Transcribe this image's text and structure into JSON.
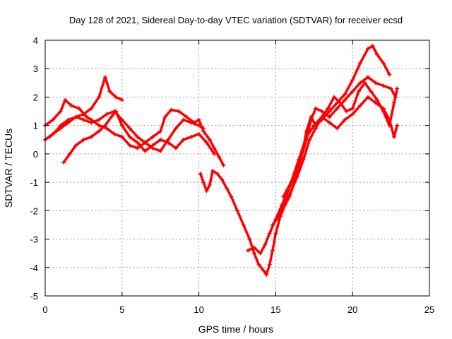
{
  "chart_data": {
    "type": "scatter",
    "title": "Day 128 of 2021, Sidereal Day-to-day VTEC variation (SDTVAR) for receiver ecsd",
    "xlabel": "GPS time / hours",
    "ylabel": "SDTVAR / TECUs",
    "xlim": [
      0,
      25
    ],
    "ylim": [
      -5,
      4
    ],
    "xticks": [
      "0",
      "5",
      "10",
      "15",
      "20",
      "25"
    ],
    "yticks": [
      "-5",
      "-4",
      "-3",
      "-2",
      "-1",
      "0",
      "1",
      "2",
      "3",
      "4"
    ],
    "grid": true,
    "marker": "+",
    "color": "#ff0000",
    "series": [
      {
        "x": [
          0.0,
          0.5,
          1.0,
          1.5,
          2.0,
          2.5,
          3.0,
          3.5,
          3.9,
          4.2,
          4.6,
          5.0
        ],
        "y": [
          0.5,
          0.7,
          0.9,
          1.1,
          1.3,
          1.4,
          1.6,
          2.0,
          2.7,
          2.2,
          2.0,
          1.9
        ]
      },
      {
        "x": [
          0.0,
          0.5,
          1.0,
          1.3,
          1.7,
          2.2,
          2.7,
          3.0,
          3.5,
          4.0,
          4.5,
          5.0,
          5.5,
          6.0,
          6.5,
          7.0,
          7.5,
          7.8,
          8.2,
          8.7,
          9.2,
          9.7,
          10.0,
          10.3,
          10.7,
          11.0,
          11.3,
          11.6
        ],
        "y": [
          1.0,
          1.2,
          1.5,
          1.9,
          1.7,
          1.6,
          1.3,
          1.2,
          1.0,
          0.9,
          0.7,
          0.6,
          0.3,
          0.2,
          0.4,
          0.6,
          0.8,
          1.3,
          1.55,
          1.5,
          1.3,
          1.1,
          1.2,
          0.8,
          0.5,
          0.2,
          -0.1,
          -0.4
        ]
      },
      {
        "x": [
          1.2,
          1.6,
          2.0,
          2.5,
          3.0,
          3.5,
          3.9,
          4.3,
          4.6,
          5.0,
          5.5,
          6.0,
          6.5,
          7.0,
          7.5,
          8.0,
          8.5,
          9.0,
          9.5,
          10.0,
          10.5,
          11.0
        ],
        "y": [
          -0.3,
          0.0,
          0.3,
          0.5,
          0.6,
          0.8,
          1.0,
          1.3,
          1.5,
          1.0,
          0.6,
          0.4,
          0.1,
          0.3,
          0.5,
          0.4,
          0.2,
          0.5,
          0.6,
          0.7,
          0.4,
          0.0
        ]
      },
      {
        "x": [
          0.3,
          0.7,
          1.0,
          1.5,
          2.0,
          2.5,
          3.0,
          3.5,
          4.0,
          4.5,
          5.0,
          5.5,
          6.0,
          6.5,
          7.0,
          7.5,
          8.0,
          8.5,
          9.0,
          9.5,
          10.0,
          10.3
        ],
        "y": [
          0.6,
          0.8,
          1.0,
          1.2,
          1.3,
          1.2,
          1.1,
          1.2,
          1.4,
          1.5,
          1.2,
          0.9,
          0.6,
          0.4,
          0.2,
          0.1,
          0.5,
          0.9,
          1.2,
          1.1,
          1.0,
          0.9
        ]
      },
      {
        "x": [
          10.1,
          10.3,
          10.5,
          10.7,
          10.9,
          11.2,
          11.5,
          11.8,
          12.1,
          12.5,
          12.9,
          13.3,
          13.6,
          13.9,
          14.2,
          14.4,
          14.6,
          14.8,
          15.0,
          15.3,
          15.6,
          15.9,
          16.2,
          16.5,
          16.8,
          17.0,
          17.3,
          17.6,
          18.0,
          18.5,
          19.0,
          19.5,
          20.0,
          20.5,
          21.0,
          21.3,
          21.6,
          22.0,
          22.4
        ],
        "y": [
          -0.7,
          -1.0,
          -1.3,
          -1.1,
          -0.6,
          -0.7,
          -0.9,
          -1.2,
          -1.5,
          -2.0,
          -2.5,
          -3.0,
          -3.5,
          -3.9,
          -4.1,
          -4.25,
          -3.9,
          -3.4,
          -2.8,
          -2.2,
          -1.8,
          -1.5,
          -1.0,
          -0.5,
          0.2,
          0.8,
          1.3,
          1.0,
          1.2,
          1.5,
          1.8,
          2.1,
          2.6,
          3.2,
          3.7,
          3.8,
          3.5,
          3.2,
          2.8
        ]
      },
      {
        "x": [
          13.2,
          13.6,
          14.0,
          14.3,
          14.6,
          15.0,
          15.4,
          15.8,
          16.2,
          16.6,
          17.0,
          17.3,
          17.6,
          18.0,
          18.5,
          19.0,
          19.5,
          20.0,
          20.5,
          21.0,
          21.5,
          22.0,
          22.5,
          22.8
        ],
        "y": [
          -3.4,
          -3.3,
          -3.5,
          -3.2,
          -2.8,
          -2.3,
          -1.8,
          -1.3,
          -0.8,
          -0.2,
          0.5,
          1.2,
          1.6,
          1.5,
          1.3,
          1.6,
          1.9,
          2.2,
          2.5,
          2.7,
          2.5,
          2.4,
          2.3,
          2.0
        ]
      },
      {
        "x": [
          14.8,
          15.2,
          15.6,
          16.0,
          16.4,
          16.8,
          17.2,
          17.6,
          18.0,
          18.4,
          18.8,
          19.2,
          19.6,
          20.0,
          20.4,
          20.8,
          21.2,
          21.6,
          22.0,
          22.4,
          22.7,
          22.9
        ],
        "y": [
          -2.5,
          -2.2,
          -1.7,
          -1.3,
          -0.8,
          -0.2,
          0.5,
          0.9,
          1.3,
          1.6,
          2.0,
          1.8,
          1.5,
          1.6,
          2.2,
          2.5,
          2.2,
          1.9,
          1.5,
          1.0,
          1.8,
          2.3
        ]
      },
      {
        "x": [
          15.5,
          16.0,
          16.5,
          17.0,
          17.5,
          18.0,
          18.5,
          19.0,
          19.5,
          20.0,
          20.5,
          21.0,
          21.5,
          22.0,
          22.4,
          22.7,
          22.9
        ],
        "y": [
          -1.5,
          -1.0,
          -0.2,
          0.6,
          1.0,
          1.3,
          1.1,
          0.9,
          1.2,
          1.4,
          1.7,
          2.0,
          1.8,
          1.6,
          1.2,
          0.6,
          1.0
        ]
      }
    ]
  }
}
